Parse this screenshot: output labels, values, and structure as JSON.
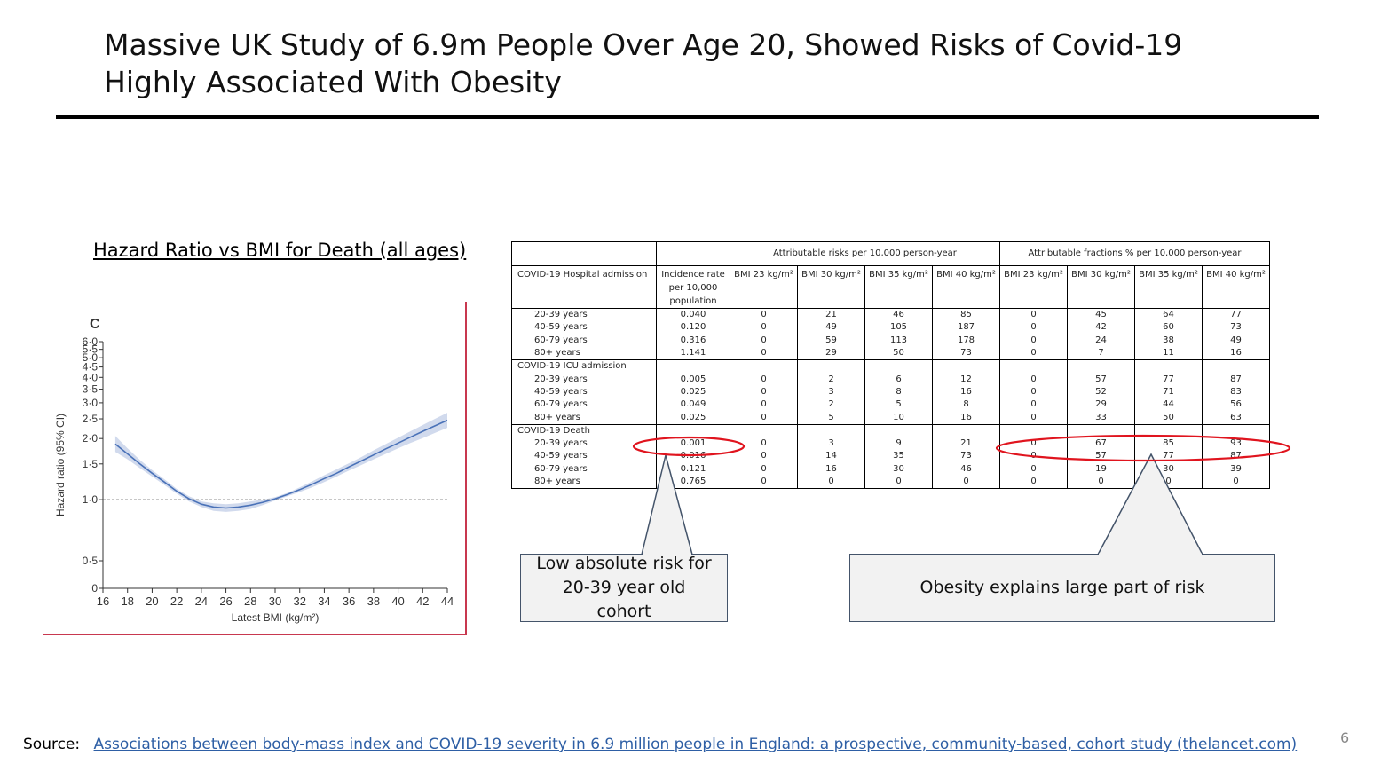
{
  "slide": {
    "title": "Massive UK Study of 6.9m People Over Age 20, Showed Risks of Covid-19 Highly Associated With Obesity",
    "chart_heading": "Hazard Ratio vs BMI for Death (all ages)",
    "page_number": "6",
    "source_label": "Source:",
    "source_link": "Associations between body-mass index and COVID-19 severity in 6.9 million people in England: a prospective, community-based, cohort study (thelancet.com)"
  },
  "callouts": {
    "left": "Low absolute risk for 20-39 year old cohort",
    "right": "Obesity explains large part of risk"
  },
  "colors": {
    "curve": "#4a72b8",
    "band": "#c9d4ea",
    "highlight": "#e0141e",
    "frame": "#c8384f",
    "link": "#2e5fa5"
  },
  "chart_data": {
    "type": "line",
    "panel_label": "C",
    "xlabel": "Latest BMI (kg/m²)",
    "ylabel": "Hazard ratio (95% CI)",
    "y_scale": "log",
    "xlim": [
      16,
      44
    ],
    "ylim": [
      0,
      6.0
    ],
    "x_ticks": [
      "16",
      "18",
      "20",
      "22",
      "24",
      "26",
      "28",
      "30",
      "32",
      "34",
      "36",
      "38",
      "40",
      "42",
      "44"
    ],
    "y_ticks": [
      {
        "value": 0,
        "label": "0"
      },
      {
        "value": 0.5,
        "label": "0·5"
      },
      {
        "value": 1.0,
        "label": "1·0"
      },
      {
        "value": 1.5,
        "label": "1·5"
      },
      {
        "value": 2.0,
        "label": "2·0"
      },
      {
        "value": 2.5,
        "label": "2·5"
      },
      {
        "value": 3.0,
        "label": "3·0"
      },
      {
        "value": 3.5,
        "label": "3·5"
      },
      {
        "value": 4.0,
        "label": "4·0"
      },
      {
        "value": 4.5,
        "label": "4·5"
      },
      {
        "value": 5.0,
        "label": "5·0"
      },
      {
        "value": 5.5,
        "label": "5·5"
      },
      {
        "value": 6.0,
        "label": "6·0"
      }
    ],
    "reference_line": 1.0,
    "series": [
      {
        "x": [
          17,
          18,
          19,
          20,
          21,
          22,
          23,
          24,
          25,
          26,
          27,
          28,
          29,
          30,
          31,
          32,
          33,
          34,
          35,
          36,
          37,
          38,
          39,
          40,
          41,
          42,
          43,
          44
        ],
        "y": [
          1.88,
          1.68,
          1.5,
          1.35,
          1.22,
          1.1,
          1.01,
          0.95,
          0.92,
          0.91,
          0.92,
          0.94,
          0.97,
          1.01,
          1.06,
          1.12,
          1.19,
          1.27,
          1.35,
          1.45,
          1.55,
          1.66,
          1.78,
          1.9,
          2.03,
          2.17,
          2.31,
          2.46
        ],
        "lower": [
          1.72,
          1.58,
          1.43,
          1.3,
          1.18,
          1.07,
          0.98,
          0.92,
          0.88,
          0.87,
          0.88,
          0.9,
          0.94,
          0.99,
          1.04,
          1.09,
          1.15,
          1.22,
          1.3,
          1.39,
          1.48,
          1.58,
          1.68,
          1.79,
          1.9,
          2.01,
          2.13,
          2.26
        ],
        "upper": [
          2.06,
          1.79,
          1.57,
          1.4,
          1.26,
          1.13,
          1.04,
          0.98,
          0.96,
          0.95,
          0.96,
          0.98,
          1.0,
          1.03,
          1.08,
          1.15,
          1.23,
          1.32,
          1.41,
          1.51,
          1.62,
          1.75,
          1.88,
          2.02,
          2.17,
          2.33,
          2.5,
          2.68
        ]
      }
    ]
  },
  "table": {
    "group_headers": [
      "Attributable risks per 10,000 person-year",
      "Attributable fractions % per 10,000 person-year"
    ],
    "columns": [
      "Incidence rate per 10,000 population",
      "BMI 23 kg/m²",
      "BMI 30 kg/m²",
      "BMI 35 kg/m²",
      "BMI 40 kg/m²",
      "BMI 23 kg/m²",
      "BMI 30 kg/m²",
      "BMI 35 kg/m²",
      "BMI 40 kg/m²"
    ],
    "sections": [
      {
        "label": "COVID-19 Hospital admission",
        "rows": [
          {
            "age": "20-39 years",
            "v": [
              "0.040",
              "0",
              "21",
              "46",
              "85",
              "0",
              "45",
              "64",
              "77"
            ]
          },
          {
            "age": "40-59 years",
            "v": [
              "0.120",
              "0",
              "49",
              "105",
              "187",
              "0",
              "42",
              "60",
              "73"
            ]
          },
          {
            "age": "60-79 years",
            "v": [
              "0.316",
              "0",
              "59",
              "113",
              "178",
              "0",
              "24",
              "38",
              "49"
            ]
          },
          {
            "age": "80+ years",
            "v": [
              "1.141",
              "0",
              "29",
              "50",
              "73",
              "0",
              "7",
              "11",
              "16"
            ]
          }
        ]
      },
      {
        "label": "COVID-19 ICU admission",
        "rows": [
          {
            "age": "20-39 years",
            "v": [
              "0.005",
              "0",
              "2",
              "6",
              "12",
              "0",
              "57",
              "77",
              "87"
            ]
          },
          {
            "age": "40-59 years",
            "v": [
              "0.025",
              "0",
              "3",
              "8",
              "16",
              "0",
              "52",
              "71",
              "83"
            ]
          },
          {
            "age": "60-79 years",
            "v": [
              "0.049",
              "0",
              "2",
              "5",
              "8",
              "0",
              "29",
              "44",
              "56"
            ]
          },
          {
            "age": "80+ years",
            "v": [
              "0.025",
              "0",
              "5",
              "10",
              "16",
              "0",
              "33",
              "50",
              "63"
            ]
          }
        ]
      },
      {
        "label": "COVID-19 Death",
        "rows": [
          {
            "age": "20-39 years",
            "v": [
              "0.001",
              "0",
              "3",
              "9",
              "21",
              "0",
              "67",
              "85",
              "93"
            ]
          },
          {
            "age": "40-59 years",
            "v": [
              "0.016",
              "0",
              "14",
              "35",
              "73",
              "0",
              "57",
              "77",
              "87"
            ]
          },
          {
            "age": "60-79 years",
            "v": [
              "0.121",
              "0",
              "16",
              "30",
              "46",
              "0",
              "19",
              "30",
              "39"
            ]
          },
          {
            "age": "80+ years",
            "v": [
              "0.765",
              "0",
              "0",
              "0",
              "0",
              "0",
              "0",
              "0",
              "0"
            ]
          }
        ]
      }
    ]
  }
}
